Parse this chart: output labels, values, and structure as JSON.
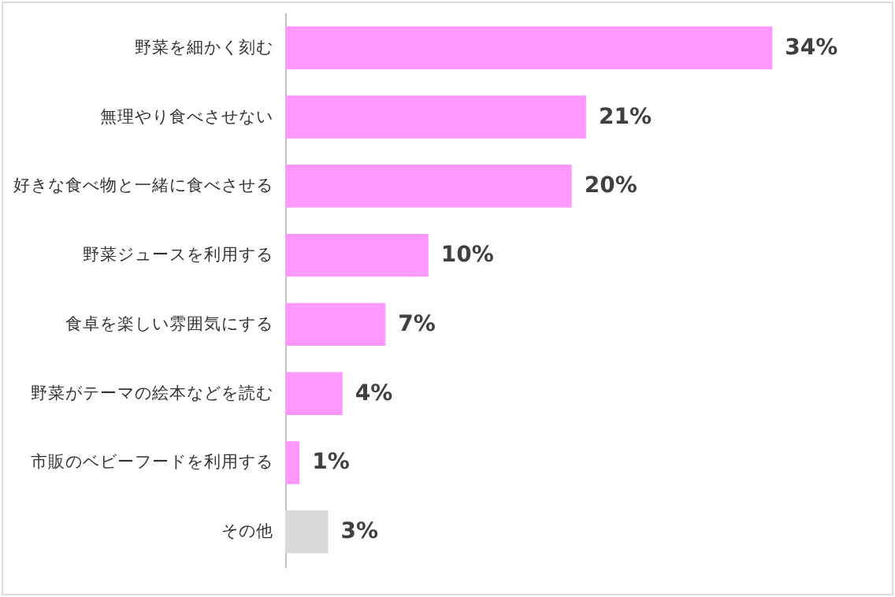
{
  "chart_data": {
    "type": "bar",
    "orientation": "horizontal",
    "categories": [
      "野菜を細かく刻む",
      "無理やり食べさせない",
      "好きな食べ物と一緒に食べさせる",
      "野菜ジュースを利用する",
      "食卓を楽しい雰囲気にする",
      "野菜がテーマの絵本などを読む",
      "市販のベビーフードを利用する",
      "その他"
    ],
    "values": [
      34,
      21,
      20,
      10,
      7,
      4,
      1,
      3
    ],
    "colors": [
      "#ff99ff",
      "#ff99ff",
      "#ff99ff",
      "#ff99ff",
      "#ff99ff",
      "#ff99ff",
      "#ff99ff",
      "#d9d9d9"
    ],
    "value_labels": [
      "34%",
      "21%",
      "20%",
      "10%",
      "7%",
      "4%",
      "1%",
      "3%"
    ]
  }
}
